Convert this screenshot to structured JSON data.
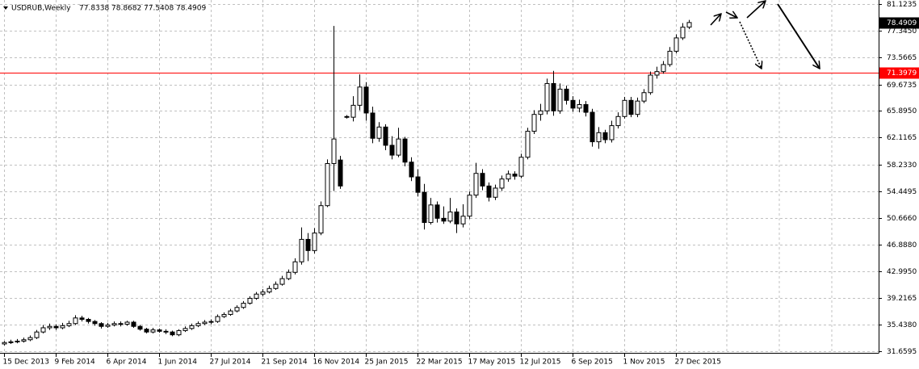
{
  "chart_data": {
    "type": "candlestick",
    "title": "USDRUB,Weekly",
    "categories": [
      "15 Dec 2013",
      null,
      null,
      null,
      null,
      null,
      null,
      null,
      "9 Feb 2014",
      null,
      null,
      null,
      null,
      null,
      null,
      null,
      "6 Apr 2014",
      null,
      null,
      null,
      null,
      null,
      null,
      null,
      "1 Jun 2014",
      null,
      null,
      null,
      null,
      null,
      null,
      null,
      "27 Jul 2014",
      null,
      null,
      null,
      null,
      null,
      null,
      null,
      "21 Sep 2014",
      null,
      null,
      null,
      null,
      null,
      null,
      null,
      "16 Nov 2014",
      null,
      null,
      null,
      null,
      null,
      null,
      null,
      "25 Jan 2015",
      null,
      null,
      null,
      null,
      null,
      null,
      null,
      "22 Mar 2015",
      null,
      null,
      null,
      null,
      null,
      null,
      null,
      "17 May 2015",
      null,
      null,
      null,
      null,
      null,
      null,
      null,
      "12 Jul 2015",
      null,
      null,
      null,
      null,
      null,
      null,
      null,
      "6 Sep 2015",
      null,
      null,
      null,
      null,
      null,
      null,
      null,
      "1 Nov 2015",
      null,
      null,
      null,
      null,
      null,
      null,
      null,
      "27 Dec 2015",
      null,
      null
    ],
    "open": [
      32.7,
      32.9,
      33.0,
      33.1,
      33.3,
      33.6,
      34.4,
      35.0,
      35.2,
      35.0,
      35.3,
      35.6,
      36.4,
      36.2,
      35.9,
      35.6,
      35.2,
      35.4,
      35.6,
      35.5,
      35.8,
      35.2,
      34.8,
      34.4,
      34.7,
      34.5,
      34.4,
      34.0,
      34.6,
      34.9,
      35.3,
      35.6,
      35.8,
      35.9,
      36.6,
      36.9,
      37.4,
      37.9,
      38.5,
      39.2,
      39.8,
      40.1,
      40.6,
      41.2,
      42.0,
      42.9,
      44.4,
      47.6,
      46.0,
      48.5,
      52.4,
      58.4,
      58.9,
      65.1,
      65.0,
      66.7,
      69.3,
      65.6,
      62.0,
      63.6,
      61.0,
      59.6,
      61.9,
      58.6,
      56.5,
      54.3,
      50.0,
      52.5,
      50.6,
      50.2,
      51.5,
      49.8,
      50.9,
      53.9,
      57.0,
      55.2,
      53.6,
      54.9,
      56.2,
      56.9,
      56.6,
      59.3,
      63.0,
      65.4,
      65.9,
      69.8,
      65.9,
      69.0,
      67.4,
      66.3,
      66.8,
      65.7,
      61.5,
      62.8,
      61.8,
      63.8,
      65.1,
      67.4,
      65.4,
      67.3,
      68.5,
      71.0,
      71.5,
      72.5,
      74.4,
      76.3,
      77.8338
    ],
    "high": [
      33.1,
      33.3,
      33.4,
      33.6,
      33.9,
      34.7,
      35.4,
      35.6,
      35.5,
      35.7,
      36.0,
      36.8,
      36.7,
      36.4,
      36.1,
      35.8,
      35.7,
      35.9,
      35.9,
      36.0,
      36.0,
      35.4,
      35.0,
      35.0,
      34.9,
      34.8,
      34.6,
      34.8,
      35.2,
      35.6,
      35.9,
      36.1,
      36.2,
      36.9,
      37.2,
      37.7,
      38.2,
      38.8,
      39.5,
      40.1,
      40.5,
      41.0,
      41.6,
      42.4,
      43.3,
      44.9,
      49.3,
      48.5,
      49.2,
      53.0,
      59.0,
      78.0,
      59.5,
      65.3,
      68.0,
      71.1,
      70.0,
      66.5,
      64.3,
      64.0,
      62.3,
      63.5,
      62.2,
      59.3,
      57.6,
      55.5,
      53.5,
      53.0,
      52.3,
      53.5,
      52.0,
      52.6,
      54.4,
      58.5,
      57.6,
      55.7,
      55.4,
      56.7,
      57.4,
      57.3,
      59.8,
      63.5,
      66.0,
      66.9,
      70.5,
      71.6,
      69.8,
      69.5,
      68.0,
      67.5,
      67.3,
      66.2,
      63.6,
      63.2,
      64.5,
      65.7,
      67.9,
      67.9,
      67.8,
      69.0,
      71.5,
      72.2,
      73.0,
      75.0,
      76.8,
      78.4,
      78.8682
    ],
    "low": [
      32.5,
      32.7,
      32.8,
      32.9,
      33.1,
      33.4,
      34.2,
      34.7,
      34.7,
      34.8,
      35.1,
      35.4,
      35.9,
      35.6,
      35.3,
      34.9,
      35.0,
      35.2,
      35.2,
      35.3,
      35.0,
      34.6,
      34.2,
      34.2,
      34.3,
      34.1,
      33.8,
      33.8,
      34.4,
      34.7,
      35.1,
      35.4,
      35.5,
      35.7,
      36.4,
      36.7,
      37.2,
      37.7,
      38.3,
      39.0,
      39.5,
      39.9,
      40.4,
      41.0,
      41.8,
      42.6,
      44.0,
      44.5,
      45.6,
      48.2,
      52.2,
      54.5,
      54.8,
      64.8,
      64.4,
      66.0,
      64.5,
      61.3,
      61.5,
      60.3,
      59.0,
      59.3,
      58.0,
      55.9,
      53.7,
      49.0,
      49.7,
      50.0,
      49.8,
      49.9,
      48.5,
      49.3,
      50.5,
      53.5,
      54.6,
      53.0,
      53.2,
      54.5,
      55.8,
      56.1,
      56.3,
      59.0,
      62.6,
      64.5,
      65.4,
      65.2,
      65.5,
      66.8,
      65.8,
      65.7,
      65.1,
      60.8,
      60.5,
      61.3,
      61.4,
      63.4,
      64.8,
      65.0,
      65.0,
      67.0,
      68.2,
      70.5,
      71.2,
      72.2,
      74.1,
      76.0,
      77.5408
    ],
    "close": [
      32.9,
      33.0,
      33.1,
      33.3,
      33.6,
      34.4,
      35.0,
      35.2,
      35.0,
      35.3,
      35.6,
      36.4,
      36.2,
      35.9,
      35.6,
      35.2,
      35.4,
      35.6,
      35.5,
      35.8,
      35.2,
      34.8,
      34.4,
      34.7,
      34.5,
      34.4,
      34.0,
      34.6,
      34.9,
      35.3,
      35.6,
      35.8,
      35.9,
      36.6,
      36.9,
      37.4,
      37.9,
      38.5,
      39.2,
      39.8,
      40.1,
      40.6,
      41.2,
      42.0,
      42.9,
      44.4,
      47.6,
      46.0,
      48.5,
      52.4,
      58.4,
      61.9,
      55.2,
      65.0,
      66.7,
      69.3,
      65.6,
      62.0,
      63.6,
      61.0,
      59.6,
      61.9,
      58.6,
      56.5,
      54.3,
      50.0,
      52.5,
      50.6,
      50.2,
      51.5,
      49.8,
      50.9,
      53.9,
      57.0,
      55.2,
      53.6,
      54.9,
      56.2,
      56.9,
      56.6,
      59.3,
      63.0,
      65.4,
      65.9,
      69.8,
      65.9,
      69.0,
      67.4,
      66.3,
      66.8,
      65.7,
      61.5,
      62.8,
      61.8,
      63.8,
      65.1,
      67.4,
      65.4,
      67.3,
      68.5,
      71.0,
      71.5,
      72.5,
      74.4,
      76.3,
      77.83,
      78.4909
    ],
    "up_color": "#ffffff",
    "down_color": "#000000",
    "edge_color": "#000000",
    "ylim": [
      31.6595,
      81.1235
    ],
    "yticks": [
      81.1235,
      {
        "value": 77.345,
        "label": "77.3450"
      },
      73.5665,
      69.6735,
      {
        "value": 65.895,
        "label": "65.8950"
      },
      62.1165,
      {
        "value": 58.233,
        "label": "58.2330"
      },
      54.4495,
      {
        "value": 50.666,
        "label": "50.6660"
      },
      {
        "value": 46.888,
        "label": "46.8880"
      },
      {
        "value": 42.995,
        "label": "42.9950"
      },
      39.2165,
      {
        "value": 35.438,
        "label": "35.4380"
      },
      31.6595
    ],
    "grid": true,
    "hlines": [
      {
        "value": 71.3979,
        "color": "#ff0000"
      }
    ]
  }
}
